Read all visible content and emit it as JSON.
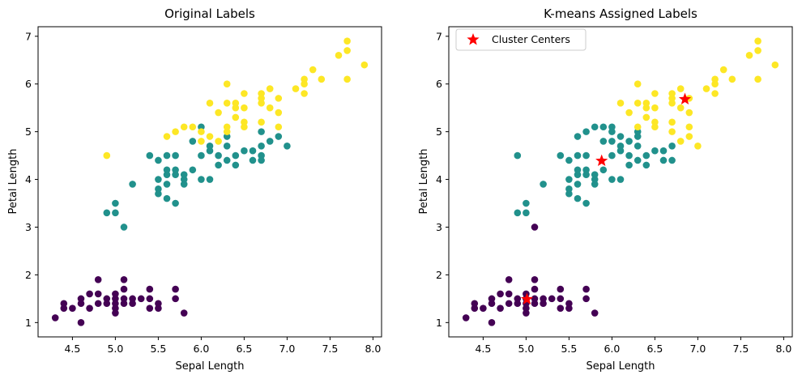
{
  "colors": {
    "setosa": "#440154",
    "versicolor": "#21918c",
    "virginica": "#fde725",
    "center": "#ff0000"
  },
  "chart_data": [
    {
      "type": "scatter",
      "title": "Original Labels",
      "xlabel": "Sepal Length",
      "ylabel": "Petal Length",
      "xlim": [
        4.1,
        8.1
      ],
      "ylim": [
        0.7,
        7.2
      ],
      "xticks": [
        "4.5",
        "5.0",
        "5.5",
        "6.0",
        "6.5",
        "7.0",
        "7.5",
        "8.0"
      ],
      "yticks": [
        "1",
        "2",
        "3",
        "4",
        "5",
        "6",
        "7"
      ],
      "grid": false,
      "series": [
        {
          "color_key": "setosa",
          "points": [
            [
              4.3,
              1.1
            ],
            [
              4.4,
              1.3
            ],
            [
              4.4,
              1.4
            ],
            [
              4.5,
              1.3
            ],
            [
              4.6,
              1.0
            ],
            [
              4.6,
              1.4
            ],
            [
              4.6,
              1.5
            ],
            [
              4.7,
              1.3
            ],
            [
              4.7,
              1.6
            ],
            [
              4.8,
              1.4
            ],
            [
              4.8,
              1.6
            ],
            [
              4.8,
              1.9
            ],
            [
              4.9,
              1.4
            ],
            [
              4.9,
              1.5
            ],
            [
              5.0,
              1.2
            ],
            [
              5.0,
              1.3
            ],
            [
              5.0,
              1.4
            ],
            [
              5.0,
              1.5
            ],
            [
              5.0,
              1.6
            ],
            [
              5.1,
              1.4
            ],
            [
              5.1,
              1.5
            ],
            [
              5.1,
              1.7
            ],
            [
              5.1,
              1.9
            ],
            [
              5.2,
              1.4
            ],
            [
              5.2,
              1.5
            ],
            [
              5.3,
              1.5
            ],
            [
              5.4,
              1.3
            ],
            [
              5.4,
              1.5
            ],
            [
              5.4,
              1.7
            ],
            [
              5.5,
              1.3
            ],
            [
              5.5,
              1.4
            ],
            [
              5.7,
              1.5
            ],
            [
              5.7,
              1.7
            ],
            [
              5.8,
              1.2
            ]
          ]
        },
        {
          "color_key": "versicolor",
          "points": [
            [
              4.9,
              3.3
            ],
            [
              5.0,
              3.3
            ],
            [
              5.0,
              3.5
            ],
            [
              5.1,
              3.0
            ],
            [
              5.2,
              3.9
            ],
            [
              5.4,
              4.5
            ],
            [
              5.5,
              3.7
            ],
            [
              5.5,
              3.8
            ],
            [
              5.5,
              4.0
            ],
            [
              5.5,
              4.4
            ],
            [
              5.6,
              3.6
            ],
            [
              5.6,
              3.9
            ],
            [
              5.6,
              4.1
            ],
            [
              5.6,
              4.2
            ],
            [
              5.6,
              4.5
            ],
            [
              5.7,
              3.5
            ],
            [
              5.7,
              4.1
            ],
            [
              5.7,
              4.2
            ],
            [
              5.7,
              4.5
            ],
            [
              5.8,
              3.9
            ],
            [
              5.8,
              4.0
            ],
            [
              5.8,
              4.1
            ],
            [
              5.9,
              4.2
            ],
            [
              5.9,
              4.8
            ],
            [
              6.0,
              4.0
            ],
            [
              6.0,
              4.5
            ],
            [
              6.0,
              5.1
            ],
            [
              6.1,
              4.0
            ],
            [
              6.1,
              4.6
            ],
            [
              6.1,
              4.7
            ],
            [
              6.2,
              4.3
            ],
            [
              6.2,
              4.5
            ],
            [
              6.3,
              4.4
            ],
            [
              6.3,
              4.7
            ],
            [
              6.3,
              4.9
            ],
            [
              6.4,
              4.3
            ],
            [
              6.4,
              4.5
            ],
            [
              6.5,
              4.6
            ],
            [
              6.6,
              4.4
            ],
            [
              6.6,
              4.6
            ],
            [
              6.7,
              4.4
            ],
            [
              6.7,
              4.5
            ],
            [
              6.7,
              4.7
            ],
            [
              6.7,
              5.0
            ],
            [
              6.8,
              4.8
            ],
            [
              6.9,
              4.9
            ],
            [
              7.0,
              4.7
            ]
          ]
        },
        {
          "color_key": "virginica",
          "points": [
            [
              4.9,
              4.5
            ],
            [
              5.6,
              4.9
            ],
            [
              5.7,
              5.0
            ],
            [
              5.8,
              5.1
            ],
            [
              5.9,
              5.1
            ],
            [
              6.0,
              4.8
            ],
            [
              6.0,
              5.0
            ],
            [
              6.1,
              4.9
            ],
            [
              6.1,
              5.6
            ],
            [
              6.2,
              4.8
            ],
            [
              6.2,
              5.4
            ],
            [
              6.3,
              5.0
            ],
            [
              6.3,
              5.1
            ],
            [
              6.3,
              5.6
            ],
            [
              6.3,
              6.0
            ],
            [
              6.4,
              5.3
            ],
            [
              6.4,
              5.5
            ],
            [
              6.4,
              5.6
            ],
            [
              6.5,
              5.1
            ],
            [
              6.5,
              5.2
            ],
            [
              6.5,
              5.5
            ],
            [
              6.5,
              5.8
            ],
            [
              6.7,
              5.2
            ],
            [
              6.7,
              5.6
            ],
            [
              6.7,
              5.7
            ],
            [
              6.7,
              5.8
            ],
            [
              6.8,
              5.5
            ],
            [
              6.8,
              5.9
            ],
            [
              6.9,
              5.1
            ],
            [
              6.9,
              5.4
            ],
            [
              6.9,
              5.7
            ],
            [
              7.1,
              5.9
            ],
            [
              7.2,
              5.8
            ],
            [
              7.2,
              6.0
            ],
            [
              7.2,
              6.1
            ],
            [
              7.3,
              6.3
            ],
            [
              7.4,
              6.1
            ],
            [
              7.6,
              6.6
            ],
            [
              7.7,
              6.1
            ],
            [
              7.7,
              6.7
            ],
            [
              7.7,
              6.9
            ],
            [
              7.9,
              6.4
            ]
          ]
        }
      ]
    },
    {
      "type": "scatter",
      "title": "K-means Assigned Labels",
      "xlabel": "Sepal Length",
      "ylabel": "Petal Length",
      "xlim": [
        4.1,
        8.1
      ],
      "ylim": [
        0.7,
        7.2
      ],
      "xticks": [
        "4.5",
        "5.0",
        "5.5",
        "6.0",
        "6.5",
        "7.0",
        "7.5",
        "8.0"
      ],
      "yticks": [
        "1",
        "2",
        "3",
        "4",
        "5",
        "6",
        "7"
      ],
      "grid": false,
      "legend": {
        "placement": "top-left",
        "entries": [
          "Cluster Centers"
        ]
      },
      "series": [
        {
          "color_key": "setosa",
          "points": [
            [
              4.3,
              1.1
            ],
            [
              4.4,
              1.3
            ],
            [
              4.4,
              1.4
            ],
            [
              4.5,
              1.3
            ],
            [
              4.6,
              1.0
            ],
            [
              4.6,
              1.4
            ],
            [
              4.6,
              1.5
            ],
            [
              4.7,
              1.3
            ],
            [
              4.7,
              1.6
            ],
            [
              4.8,
              1.4
            ],
            [
              4.8,
              1.6
            ],
            [
              4.8,
              1.9
            ],
            [
              4.9,
              1.4
            ],
            [
              4.9,
              1.5
            ],
            [
              5.0,
              1.2
            ],
            [
              5.0,
              1.3
            ],
            [
              5.0,
              1.4
            ],
            [
              5.0,
              1.5
            ],
            [
              5.0,
              1.6
            ],
            [
              5.1,
              1.4
            ],
            [
              5.1,
              1.5
            ],
            [
              5.1,
              1.7
            ],
            [
              5.1,
              1.9
            ],
            [
              5.1,
              3.0
            ],
            [
              5.2,
              1.4
            ],
            [
              5.2,
              1.5
            ],
            [
              5.3,
              1.5
            ],
            [
              5.4,
              1.3
            ],
            [
              5.4,
              1.5
            ],
            [
              5.4,
              1.7
            ],
            [
              5.5,
              1.3
            ],
            [
              5.5,
              1.4
            ],
            [
              5.7,
              1.5
            ],
            [
              5.7,
              1.7
            ],
            [
              5.8,
              1.2
            ]
          ]
        },
        {
          "color_key": "versicolor",
          "points": [
            [
              4.9,
              3.3
            ],
            [
              4.9,
              4.5
            ],
            [
              5.0,
              3.3
            ],
            [
              5.0,
              3.5
            ],
            [
              5.2,
              3.9
            ],
            [
              5.4,
              4.5
            ],
            [
              5.5,
              3.7
            ],
            [
              5.5,
              3.8
            ],
            [
              5.5,
              4.0
            ],
            [
              5.5,
              4.4
            ],
            [
              5.6,
              3.6
            ],
            [
              5.6,
              3.9
            ],
            [
              5.6,
              4.1
            ],
            [
              5.6,
              4.2
            ],
            [
              5.6,
              4.5
            ],
            [
              5.6,
              4.9
            ],
            [
              5.7,
              3.5
            ],
            [
              5.7,
              4.1
            ],
            [
              5.7,
              4.2
            ],
            [
              5.7,
              4.5
            ],
            [
              5.7,
              5.0
            ],
            [
              5.8,
              3.9
            ],
            [
              5.8,
              4.0
            ],
            [
              5.8,
              4.1
            ],
            [
              5.8,
              5.1
            ],
            [
              5.9,
              4.2
            ],
            [
              5.9,
              4.8
            ],
            [
              5.9,
              5.1
            ],
            [
              6.0,
              4.0
            ],
            [
              6.0,
              4.5
            ],
            [
              6.0,
              4.8
            ],
            [
              6.0,
              5.0
            ],
            [
              6.0,
              5.1
            ],
            [
              6.1,
              4.0
            ],
            [
              6.1,
              4.6
            ],
            [
              6.1,
              4.7
            ],
            [
              6.1,
              4.9
            ],
            [
              6.2,
              4.3
            ],
            [
              6.2,
              4.5
            ],
            [
              6.2,
              4.8
            ],
            [
              6.3,
              4.4
            ],
            [
              6.3,
              4.7
            ],
            [
              6.3,
              4.9
            ],
            [
              6.3,
              5.0
            ],
            [
              6.4,
              4.3
            ],
            [
              6.4,
              4.5
            ],
            [
              6.5,
              4.6
            ],
            [
              6.6,
              4.4
            ],
            [
              6.6,
              4.6
            ],
            [
              6.7,
              4.4
            ],
            [
              6.7,
              4.7
            ]
          ]
        },
        {
          "color_key": "virginica",
          "points": [
            [
              6.1,
              5.6
            ],
            [
              6.2,
              5.4
            ],
            [
              6.3,
              5.1
            ],
            [
              6.3,
              5.6
            ],
            [
              6.3,
              6.0
            ],
            [
              6.4,
              5.3
            ],
            [
              6.4,
              5.5
            ],
            [
              6.4,
              5.6
            ],
            [
              6.5,
              5.1
            ],
            [
              6.5,
              5.2
            ],
            [
              6.5,
              5.5
            ],
            [
              6.5,
              5.8
            ],
            [
              6.7,
              5.0
            ],
            [
              6.7,
              5.2
            ],
            [
              6.7,
              5.6
            ],
            [
              6.7,
              5.7
            ],
            [
              6.7,
              5.8
            ],
            [
              6.8,
              4.8
            ],
            [
              6.8,
              5.5
            ],
            [
              6.8,
              5.9
            ],
            [
              6.9,
              4.9
            ],
            [
              6.9,
              5.1
            ],
            [
              6.9,
              5.4
            ],
            [
              6.9,
              5.7
            ],
            [
              7.0,
              4.7
            ],
            [
              7.1,
              5.9
            ],
            [
              7.2,
              5.8
            ],
            [
              7.2,
              6.0
            ],
            [
              7.2,
              6.1
            ],
            [
              7.3,
              6.3
            ],
            [
              7.4,
              6.1
            ],
            [
              7.6,
              6.6
            ],
            [
              7.7,
              6.1
            ],
            [
              7.7,
              6.7
            ],
            [
              7.7,
              6.9
            ],
            [
              7.9,
              6.4
            ]
          ]
        }
      ],
      "centers": [
        [
          5.01,
          1.49
        ],
        [
          5.88,
          4.39
        ],
        [
          6.85,
          5.68
        ]
      ]
    }
  ]
}
